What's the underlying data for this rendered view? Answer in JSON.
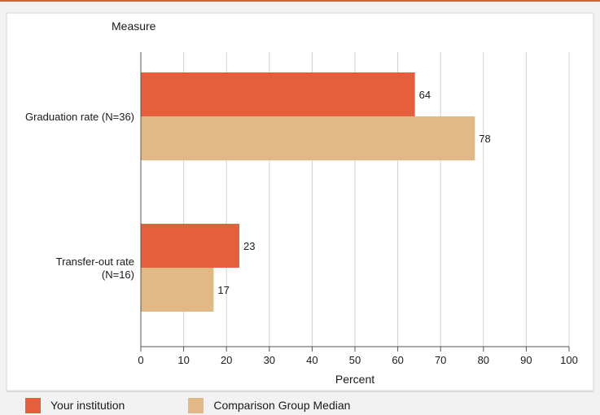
{
  "chart_data": {
    "type": "bar",
    "orientation": "horizontal",
    "category_axis_title": "Measure",
    "categories": [
      [
        "Graduation rate (N=36)"
      ],
      [
        "Transfer-out rate",
        "(N=16)"
      ]
    ],
    "series": [
      {
        "name": "Your institution",
        "color": "#e55f3d",
        "values": [
          64,
          23
        ]
      },
      {
        "name": "Comparison Group Median",
        "color": "#e0b986",
        "values": [
          78,
          17
        ]
      }
    ],
    "xlabel": "Percent",
    "xlim": [
      0,
      100
    ],
    "xticks": [
      "0",
      "10",
      "20",
      "30",
      "40",
      "50",
      "60",
      "70",
      "80",
      "90",
      "100"
    ],
    "data_labels": [
      [
        "64",
        "78"
      ],
      [
        "23",
        "17"
      ]
    ],
    "grid": true,
    "legend_position": "bottom-left"
  }
}
